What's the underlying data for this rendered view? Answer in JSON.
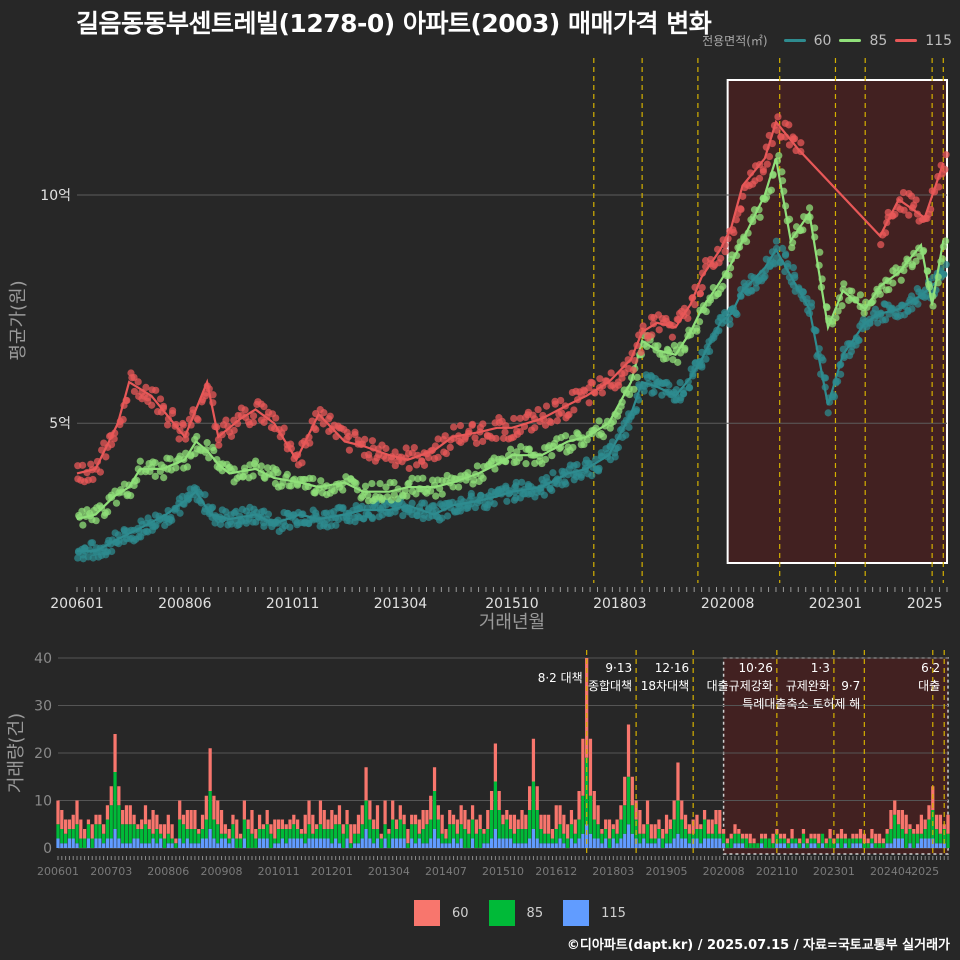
{
  "title": "길음동동부센트레빌(1278-0) 아파트(2003) 매매가격 변화",
  "legend_title": "전용면적(㎡)",
  "series_colors": {
    "60": "#2e8b8f",
    "85": "#90e07a",
    "115": "#e85858"
  },
  "bar_colors": {
    "60": "#f8766d",
    "85": "#00ba38",
    "115": "#619cff"
  },
  "footer": "©디아파트(dapt.kr) / 2025.07.15 / 자료=국토교통부 실거래가",
  "chart_data": [
    {
      "type": "line",
      "name": "price",
      "xlabel": "거래년월",
      "ylabel": "평균가(원)",
      "x_range": [
        "2006-01",
        "2025-07"
      ],
      "ylim": [
        1.5,
        13.0
      ],
      "y_ticks": [
        {
          "value": 5,
          "label": "5억"
        },
        {
          "value": 10,
          "label": "10억"
        }
      ],
      "x_ticks": [
        "200601",
        "200806",
        "201011",
        "201304",
        "201510",
        "201803",
        "202008",
        "202301",
        "2025"
      ],
      "highlight": {
        "from": "2020-08",
        "to": "2025-07"
      },
      "vlines": [
        "2017-08",
        "2018-09",
        "2019-12",
        "2021-10",
        "2023-01",
        "2023-09",
        "2025-03",
        "2025-06"
      ],
      "series": [
        {
          "name": "60",
          "points": [
            [
              "2006-01",
              2.2
            ],
            [
              "2006-06",
              2.2
            ],
            [
              "2007-01",
              2.5
            ],
            [
              "2007-06",
              2.7
            ],
            [
              "2008-01",
              3.0
            ],
            [
              "2008-06",
              3.3
            ],
            [
              "2008-09",
              3.5
            ],
            [
              "2009-01",
              3.0
            ],
            [
              "2009-06",
              2.9
            ],
            [
              "2010-01",
              3.0
            ],
            [
              "2010-06",
              2.8
            ],
            [
              "2011-01",
              3.0
            ],
            [
              "2011-06",
              2.9
            ],
            [
              "2012-01",
              3.0
            ],
            [
              "2012-06",
              3.1
            ],
            [
              "2013-01",
              3.1
            ],
            [
              "2013-06",
              3.2
            ],
            [
              "2014-01",
              3.0
            ],
            [
              "2014-06",
              3.2
            ],
            [
              "2015-01",
              3.3
            ],
            [
              "2015-06",
              3.4
            ],
            [
              "2015-10",
              3.5
            ],
            [
              "2016-06",
              3.6
            ],
            [
              "2017-01",
              3.9
            ],
            [
              "2017-06",
              4.0
            ],
            [
              "2017-12",
              4.3
            ],
            [
              "2018-06",
              5.2
            ],
            [
              "2018-09",
              5.9
            ],
            [
              "2019-01",
              5.8
            ],
            [
              "2019-06",
              5.6
            ],
            [
              "2019-10",
              6.0
            ],
            [
              "2020-01",
              6.4
            ],
            [
              "2020-06",
              7.2
            ],
            [
              "2020-09",
              7.4
            ],
            [
              "2020-12",
              7.9
            ],
            [
              "2021-06",
              8.4
            ],
            [
              "2021-09",
              8.8
            ],
            [
              "2022-06",
              7.5
            ],
            [
              "2022-11",
              5.4
            ],
            [
              "2023-03",
              6.5
            ],
            [
              "2023-09",
              7.2
            ],
            [
              "2024-01",
              7.4
            ],
            [
              "2024-06",
              7.5
            ],
            [
              "2024-12",
              7.8
            ],
            [
              "2025-03",
              8.0
            ],
            [
              "2025-06",
              8.3
            ]
          ]
        },
        {
          "name": "85",
          "points": [
            [
              "2006-01",
              2.9
            ],
            [
              "2006-06",
              3.0
            ],
            [
              "2006-11",
              3.4
            ],
            [
              "2007-03",
              3.6
            ],
            [
              "2007-06",
              4.0
            ],
            [
              "2007-12",
              4.0
            ],
            [
              "2008-06",
              4.2
            ],
            [
              "2008-09",
              4.6
            ],
            [
              "2008-12",
              4.4
            ],
            [
              "2009-03",
              4.1
            ],
            [
              "2009-06",
              3.9
            ],
            [
              "2010-01",
              4.0
            ],
            [
              "2010-06",
              3.8
            ],
            [
              "2011-01",
              3.7
            ],
            [
              "2011-06",
              3.6
            ],
            [
              "2012-01",
              3.7
            ],
            [
              "2012-06",
              3.5
            ],
            [
              "2013-01",
              3.5
            ],
            [
              "2013-06",
              3.6
            ],
            [
              "2014-01",
              3.6
            ],
            [
              "2014-06",
              3.7
            ],
            [
              "2015-01",
              3.9
            ],
            [
              "2015-06",
              4.1
            ],
            [
              "2015-10",
              4.3
            ],
            [
              "2016-06",
              4.3
            ],
            [
              "2017-01",
              4.6
            ],
            [
              "2017-06",
              4.7
            ],
            [
              "2017-12",
              5.0
            ],
            [
              "2018-06",
              5.9
            ],
            [
              "2018-09",
              6.8
            ],
            [
              "2019-01",
              6.6
            ],
            [
              "2019-06",
              6.5
            ],
            [
              "2019-10",
              7.0
            ],
            [
              "2020-01",
              7.5
            ],
            [
              "2020-06",
              8.1
            ],
            [
              "2020-09",
              8.5
            ],
            [
              "2020-12",
              9.0
            ],
            [
              "2021-06",
              10.0
            ],
            [
              "2021-09",
              10.8
            ],
            [
              "2022-01",
              9.0
            ],
            [
              "2022-06",
              9.6
            ],
            [
              "2022-11",
              7.1
            ],
            [
              "2023-03",
              7.9
            ],
            [
              "2023-09",
              7.5
            ],
            [
              "2024-01",
              8.0
            ],
            [
              "2024-06",
              8.3
            ],
            [
              "2024-12",
              8.9
            ],
            [
              "2025-03",
              7.6
            ],
            [
              "2025-06",
              9.0
            ]
          ]
        },
        {
          "name": "115",
          "points": [
            [
              "2006-01",
              3.9
            ],
            [
              "2006-06",
              4.0
            ],
            [
              "2006-12",
              5.0
            ],
            [
              "2007-03",
              5.9
            ],
            [
              "2007-09",
              5.6
            ],
            [
              "2008-06",
              4.7
            ],
            [
              "2008-12",
              5.9
            ],
            [
              "2009-03",
              4.7
            ],
            [
              "2009-09",
              5.1
            ],
            [
              "2010-01",
              5.3
            ],
            [
              "2010-06",
              5.0
            ],
            [
              "2010-12",
              4.2
            ],
            [
              "2011-06",
              5.2
            ],
            [
              "2012-01",
              4.6
            ],
            [
              "2012-06",
              4.5
            ],
            [
              "2013-01",
              4.3
            ],
            [
              "2013-06",
              4.2
            ],
            [
              "2014-01",
              4.4
            ],
            [
              "2014-06",
              4.7
            ],
            [
              "2015-01",
              4.8
            ],
            [
              "2015-06",
              4.9
            ],
            [
              "2015-10",
              4.9
            ],
            [
              "2016-06",
              5.1
            ],
            [
              "2017-01",
              5.4
            ],
            [
              "2017-06",
              5.6
            ],
            [
              "2017-12",
              5.9
            ],
            [
              "2018-06",
              6.4
            ],
            [
              "2018-09",
              7.0
            ],
            [
              "2019-01",
              7.2
            ],
            [
              "2019-06",
              7.1
            ],
            [
              "2019-10",
              7.6
            ],
            [
              "2020-01",
              8.2
            ],
            [
              "2020-06",
              8.8
            ],
            [
              "2020-09",
              9.3
            ],
            [
              "2020-12",
              10.2
            ],
            [
              "2021-06",
              10.8
            ],
            [
              "2021-09",
              11.6
            ],
            [
              "2022-03",
              11.0
            ],
            [
              "2024-01",
              9.1
            ],
            [
              "2024-06",
              9.9
            ],
            [
              "2025-01",
              9.5
            ],
            [
              "2025-06",
              10.7
            ]
          ]
        }
      ]
    },
    {
      "type": "bar",
      "name": "volume",
      "stacked": true,
      "xlabel": "",
      "ylabel": "거래량(건)",
      "ylim": [
        0,
        40
      ],
      "y_ticks": [
        0,
        10,
        20,
        30,
        40
      ],
      "x_ticks": [
        "200601",
        "200703",
        "200806",
        "200908",
        "201011",
        "201201",
        "201304",
        "201407",
        "201510",
        "201612",
        "201803",
        "201905",
        "202008",
        "202110",
        "202301",
        "202404",
        "2025"
      ],
      "highlight": {
        "from": "2020-08",
        "to": "2025-07"
      },
      "annotations": [
        {
          "date": "2017-08",
          "label": "8·2 대책"
        },
        {
          "date": "2018-09",
          "label": "9·13\n종합대책"
        },
        {
          "date": "2019-12",
          "label": "12·16\n18차대책"
        },
        {
          "date": "2021-10",
          "label": "10·26\n대출규제강화"
        },
        {
          "date": "2023-01",
          "label": "1·3\n규제완화"
        },
        {
          "date": "2023-09",
          "label": "9·7\n특례대출축소 토허제 해"
        },
        {
          "date": "2025-03",
          "label": ""
        },
        {
          "date": "2025-06",
          "label": "6·2\n대출"
        }
      ],
      "peaks": [
        {
          "date": "2007-04",
          "60": 8,
          "85": 12,
          "115": 4
        },
        {
          "date": "2009-05",
          "60": 9,
          "85": 8,
          "115": 4
        },
        {
          "date": "2012-10",
          "60": 7,
          "85": 6,
          "115": 4
        },
        {
          "date": "2014-04",
          "60": 5,
          "85": 8,
          "115": 4
        },
        {
          "date": "2015-08",
          "60": 8,
          "85": 10,
          "115": 4
        },
        {
          "date": "2016-06",
          "60": 9,
          "85": 10,
          "115": 4
        },
        {
          "date": "2017-08",
          "60": 21,
          "85": 14,
          "115": 5
        },
        {
          "date": "2018-07",
          "60": 11,
          "85": 10,
          "115": 5
        },
        {
          "date": "2019-08",
          "60": 8,
          "85": 7,
          "115": 3
        },
        {
          "date": "2024-05",
          "60": 3,
          "85": 5,
          "115": 2
        },
        {
          "date": "2025-03",
          "60": 5,
          "85": 6,
          "115": 2
        }
      ]
    }
  ]
}
